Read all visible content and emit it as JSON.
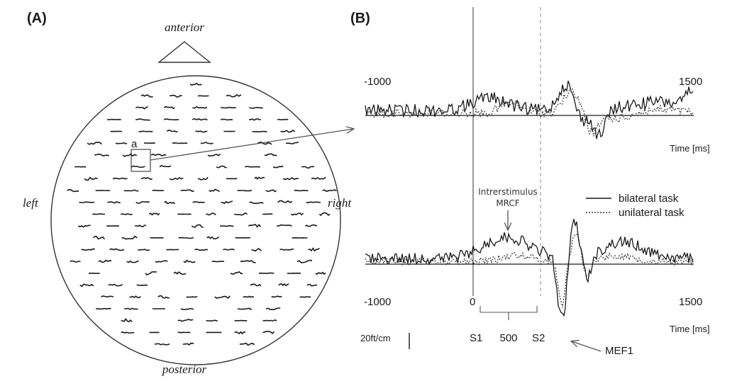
{
  "panel_a": {
    "label": "(A)",
    "anterior": "anterior",
    "posterior": "posterior",
    "left": "left",
    "right": "right",
    "sensor_marker": "a"
  },
  "panel_b": {
    "label": "(B)",
    "top_trace": {
      "xmin_label": "-1000",
      "xmax_label": "1500",
      "xlabel": "Time [ms]"
    },
    "bottom_trace": {
      "xmin_label": "-1000",
      "zero_label": "0",
      "xmax_label": "1500",
      "xlabel": "Time [ms]"
    },
    "annotation_line1": "Intrerstimulus",
    "annotation_line2": "MRCF",
    "legend": {
      "solid": "bilateral task",
      "dotted": "unilateral task"
    },
    "scale_bar": "20ft/cm",
    "s1": "S1",
    "interval": "500",
    "s2": "S2",
    "mef_label": "MEF1"
  },
  "colors": {
    "ink": "#1a1a1a",
    "guide": "#999999"
  },
  "icons": {
    "nose": "triangle-nose-icon",
    "arrow": "arrow-icon"
  }
}
